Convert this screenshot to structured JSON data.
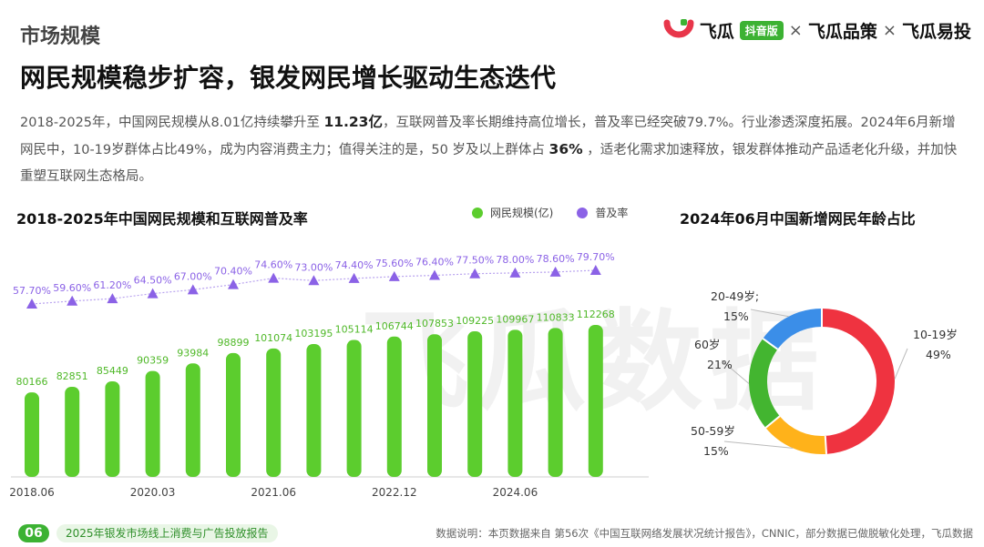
{
  "header": {
    "section_label": "市场规模",
    "title": "网民规模稳步扩容，银发网民增长驱动生态迭代"
  },
  "logos": {
    "brand1": "飞瓜",
    "brand1_badge": "抖音版",
    "sep1": "×",
    "brand2": "飞瓜品策",
    "sep2": "×",
    "brand3": "飞瓜易投"
  },
  "summary": {
    "p1": "2018-2025年，中国网民规模从8.01亿持续攀升至 ",
    "h1": "11.23亿",
    "p2": "，互联网普及率长期维持高位增长，普及率已经突破79.7%。行业渗透深度拓展。2024年6月新增网民中，10-19岁群体占比49%，成为内容消费主力；值得关注的是，50 岁及以上群体占 ",
    "h2": "36%",
    "p3": " ，适老化需求加速释放，银发群体推动产品适老化升级，并加快重塑互联网生态格局。"
  },
  "watermark": "飞瓜数据",
  "colors": {
    "bar": "#5ccd2e",
    "bar_label": "#4fb828",
    "rate": "#8b62e6",
    "rate_line": "#b9a3ef",
    "brand_green": "#3cb233"
  },
  "chart_data": [
    {
      "type": "bar",
      "title": "2018-2025年中国网民规模和互联网普及率",
      "legend": [
        "网民规模(亿)",
        "普及率"
      ],
      "legend_position": "top-right",
      "x_ticks": [
        "2018.06",
        "2020.03",
        "2021.06",
        "2022.12",
        "2024.06"
      ],
      "x_tick_indices": [
        0,
        3,
        6,
        9,
        12
      ],
      "series": [
        {
          "name": "网民规模(亿)",
          "type": "bar",
          "values": [
            80166,
            82851,
            85449,
            90359,
            93984,
            98899,
            101074,
            103195,
            105114,
            106744,
            107853,
            109225,
            109967,
            110833,
            112268
          ]
        },
        {
          "name": "普及率",
          "type": "line",
          "values": [
            57.7,
            59.6,
            61.2,
            64.5,
            67.0,
            70.4,
            74.6,
            73.0,
            74.4,
            75.6,
            76.4,
            77.5,
            78.0,
            78.6,
            79.7
          ],
          "labels": [
            "57.70%",
            "59.60%",
            "61.20%",
            "64.50%",
            "67.00%",
            "70.40%",
            "74.60%",
            "73.00%",
            "74.40%",
            "75.60%",
            "76.40%",
            "77.50%",
            "78.00%",
            "78.60%",
            "79.70%"
          ]
        }
      ],
      "grid": false
    },
    {
      "type": "pie",
      "title": "2024年06月中国新增网民年龄占比",
      "donut": true,
      "slices": [
        {
          "label": "10-19岁",
          "value": 49,
          "display": "49%",
          "color": "#ef3340"
        },
        {
          "label": "50-59岁",
          "value": 15,
          "display": "15%",
          "color": "#ffb21a"
        },
        {
          "label": "60岁",
          "value": 21,
          "display": "21%",
          "color": "#43b530"
        },
        {
          "label": "20-49岁;",
          "value": 15,
          "display": "15%",
          "color": "#3b8ee8"
        }
      ]
    }
  ],
  "footer": {
    "page_no": "06",
    "report": "2025年银发市场线上消费与广告投放报告",
    "note": "数据说明：本页数据来自 第56次《中国互联网络发展状况统计报告》，CNNIC，部分数据已做脱敏化处理，飞瓜数据"
  }
}
